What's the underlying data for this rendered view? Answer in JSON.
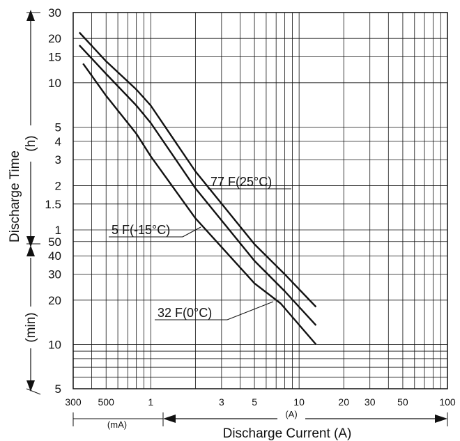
{
  "chart_data": {
    "type": "line",
    "xlabel": "Discharge Current (A)",
    "ylabel": "Discharge Time",
    "x_unit_ma_label": "(mA)",
    "x_unit_a_label": "(A)",
    "y_unit_hours_label": "(h)",
    "y_unit_minutes_label": "(min)",
    "x_scale": "log",
    "y_scale": "log",
    "grid": true,
    "xlim_amps": [
      0.3,
      100
    ],
    "ylim_minutes": [
      5,
      1800
    ],
    "x_tick_labels": [
      {
        "label": "300",
        "amps": 0.3
      },
      {
        "label": "500",
        "amps": 0.5
      },
      {
        "label": "1",
        "amps": 1
      },
      {
        "label": "3",
        "amps": 3
      },
      {
        "label": "5",
        "amps": 5
      },
      {
        "label": "10",
        "amps": 10
      },
      {
        "label": "20",
        "amps": 20
      },
      {
        "label": "30",
        "amps": 30
      },
      {
        "label": "50",
        "amps": 50
      },
      {
        "label": "100",
        "amps": 100
      }
    ],
    "y_tick_labels": [
      {
        "label": "30",
        "minutes": 1800
      },
      {
        "label": "20",
        "minutes": 1200
      },
      {
        "label": "15",
        "minutes": 900
      },
      {
        "label": "10",
        "minutes": 600
      },
      {
        "label": "5",
        "minutes": 300
      },
      {
        "label": "4",
        "minutes": 240
      },
      {
        "label": "3",
        "minutes": 180
      },
      {
        "label": "2",
        "minutes": 120
      },
      {
        "label": "1.5",
        "minutes": 90
      },
      {
        "label": "1",
        "minutes": 60
      },
      {
        "label": "50",
        "minutes": 50
      },
      {
        "label": "40",
        "minutes": 40
      },
      {
        "label": "30",
        "minutes": 30
      },
      {
        "label": "20",
        "minutes": 20
      },
      {
        "label": "10",
        "minutes": 10
      },
      {
        "label": "5",
        "minutes": 5
      }
    ],
    "series": [
      {
        "name": "77 F(25°C)",
        "x_amps": [
          0.33,
          0.5,
          0.8,
          1.0,
          2.0,
          5.0,
          8.0,
          13.0
        ],
        "y_minutes": [
          1320,
          840,
          540,
          420,
          150,
          48,
          30,
          18
        ]
      },
      {
        "name": "32 F(0°C)",
        "x_amps": [
          0.33,
          0.5,
          0.8,
          1.0,
          2.0,
          5.0,
          8.0,
          13.0
        ],
        "y_minutes": [
          1080,
          690,
          420,
          320,
          115,
          37,
          23,
          13.5
        ]
      },
      {
        "name": "5 F(-15°C)",
        "x_amps": [
          0.35,
          0.5,
          0.8,
          1.0,
          2.0,
          5.0,
          7.5,
          13.0
        ],
        "y_minutes": [
          810,
          490,
          270,
          190,
          72,
          26,
          19,
          10
        ]
      }
    ]
  }
}
